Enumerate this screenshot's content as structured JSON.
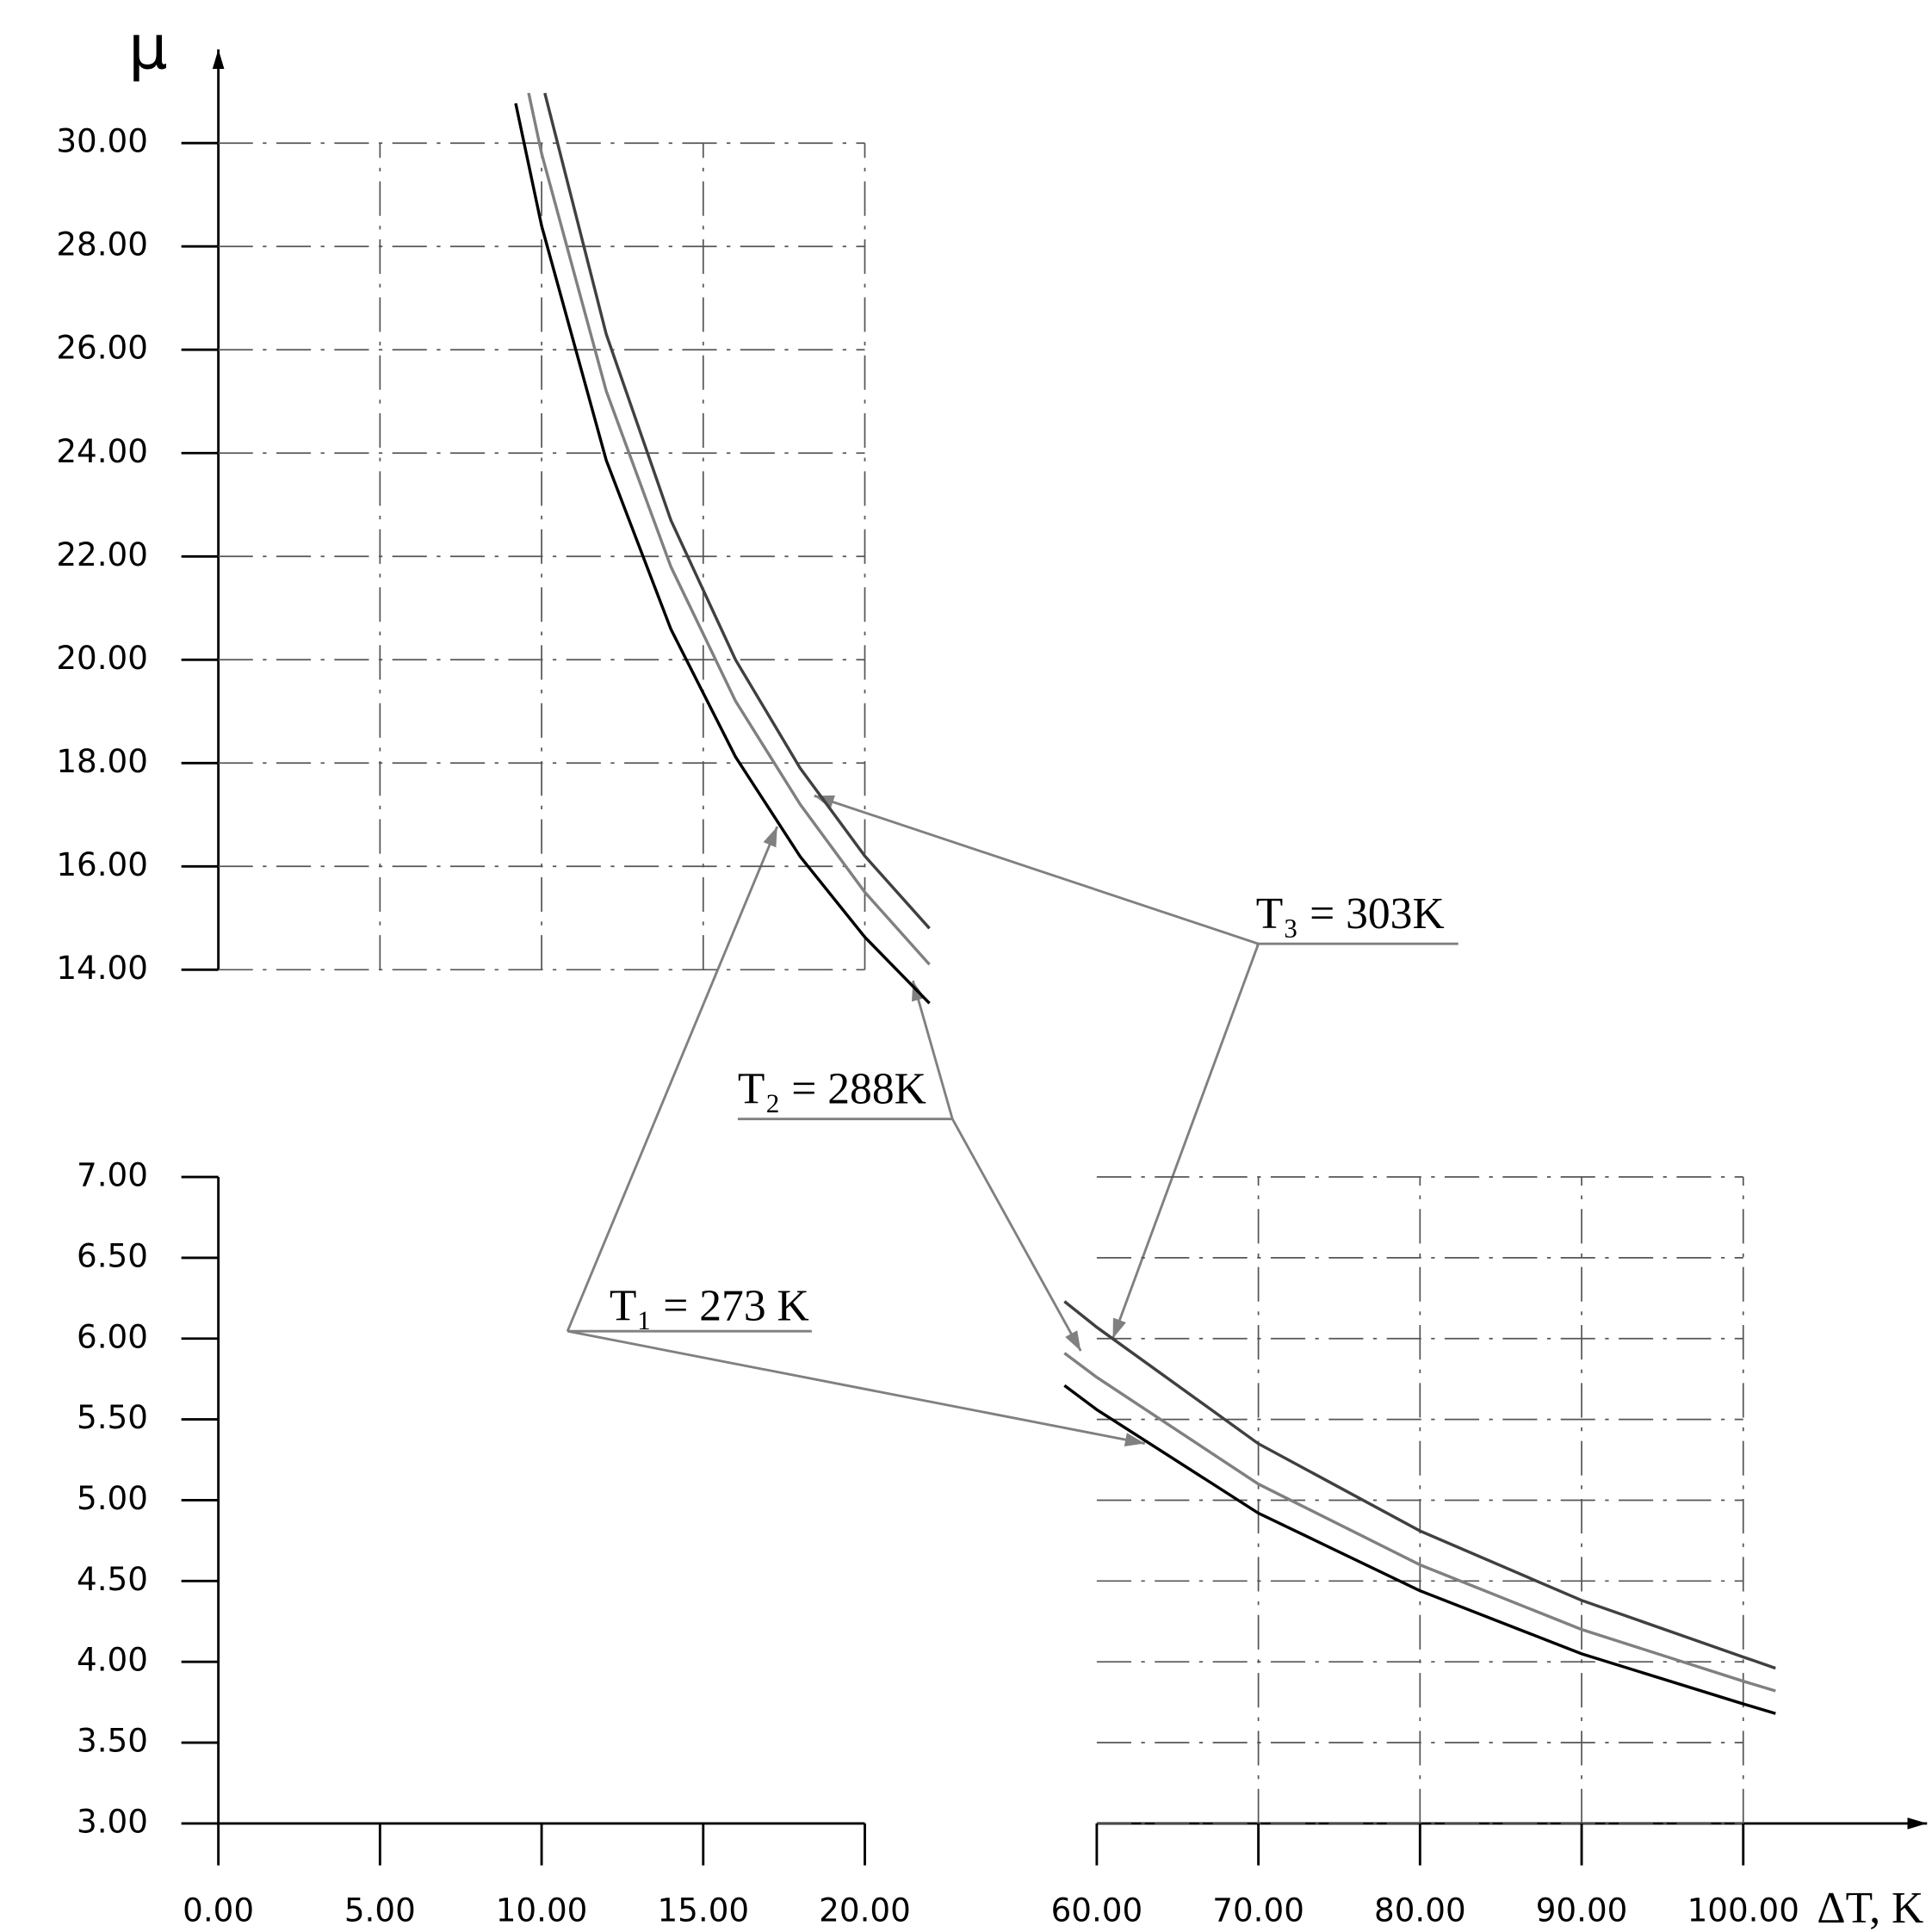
{
  "chart_data": [
    {
      "type": "line",
      "y_label": "μ",
      "x_label": "ΔT, K",
      "xlim": [
        0,
        20
      ],
      "ylim": [
        14,
        30
      ],
      "xticks": [
        {
          "value": 0,
          "label": "0.00"
        },
        {
          "value": 5,
          "label": "5.00"
        },
        {
          "value": 10,
          "label": "10.00"
        },
        {
          "value": 15,
          "label": "15.00"
        },
        {
          "value": 20,
          "label": "20.00"
        }
      ],
      "yticks": [
        {
          "value": 14,
          "label": "14.00"
        },
        {
          "value": 16,
          "label": "16.00"
        },
        {
          "value": 18,
          "label": "18.00"
        },
        {
          "value": 20,
          "label": "20.00"
        },
        {
          "value": 22,
          "label": "22.00"
        },
        {
          "value": 24,
          "label": "24.00"
        },
        {
          "value": 26,
          "label": "26.00"
        },
        {
          "value": 28,
          "label": "28.00"
        },
        {
          "value": 30,
          "label": "30.00"
        }
      ],
      "grid": true,
      "series": [
        {
          "name": "T₁ = 273 K",
          "color": "#000000",
          "x": [
            9.2,
            10,
            12,
            14,
            16,
            18,
            20,
            22
          ],
          "values": [
            30.77,
            28.4,
            23.86,
            20.59,
            18.12,
            16.19,
            14.63,
            13.35
          ]
        },
        {
          "name": "T₂ = 288K",
          "color": "#808080",
          "x": [
            9.6,
            10,
            12,
            14,
            16,
            18,
            20,
            22
          ],
          "values": [
            30.97,
            29.8,
            25.2,
            21.8,
            19.2,
            17.2,
            15.5,
            14.1
          ]
        },
        {
          "name": "T₃ = 303K",
          "color": "#404040",
          "x": [
            10.1,
            12,
            14,
            16,
            18,
            20,
            22
          ],
          "values": [
            30.97,
            26.3,
            22.7,
            20.0,
            17.9,
            16.2,
            14.8
          ]
        }
      ]
    },
    {
      "type": "line",
      "xlim": [
        60,
        100
      ],
      "ylim": [
        3,
        7
      ],
      "xticks": [
        {
          "value": 60,
          "label": "60.00"
        },
        {
          "value": 70,
          "label": "70.00"
        },
        {
          "value": 80,
          "label": "80.00"
        },
        {
          "value": 90,
          "label": "90.00"
        },
        {
          "value": 100,
          "label": "100.00"
        }
      ],
      "yticks": [
        {
          "value": 3,
          "label": "3.00"
        },
        {
          "value": 3.5,
          "label": "3.50"
        },
        {
          "value": 4,
          "label": "4.00"
        },
        {
          "value": 4.5,
          "label": "4.50"
        },
        {
          "value": 5,
          "label": "5.00"
        },
        {
          "value": 5.5,
          "label": "5.50"
        },
        {
          "value": 6,
          "label": "6.00"
        },
        {
          "value": 6.5,
          "label": "6.50"
        },
        {
          "value": 7,
          "label": "7.00"
        }
      ],
      "grid": true,
      "series": [
        {
          "color": "#000000",
          "x": [
            58,
            60,
            70,
            80,
            90,
            100,
            102
          ],
          "values": [
            5.71,
            5.56,
            4.92,
            4.44,
            4.05,
            3.74,
            3.68
          ]
        },
        {
          "color": "#808080",
          "x": [
            58,
            60,
            70,
            80,
            90,
            100,
            102
          ],
          "values": [
            5.91,
            5.76,
            5.1,
            4.6,
            4.2,
            3.88,
            3.82
          ]
        },
        {
          "color": "#404040",
          "x": [
            58,
            60,
            70,
            80,
            90,
            100,
            102
          ],
          "values": [
            6.23,
            6.07,
            5.35,
            4.81,
            4.38,
            4.03,
            3.96
          ]
        }
      ]
    }
  ]
}
